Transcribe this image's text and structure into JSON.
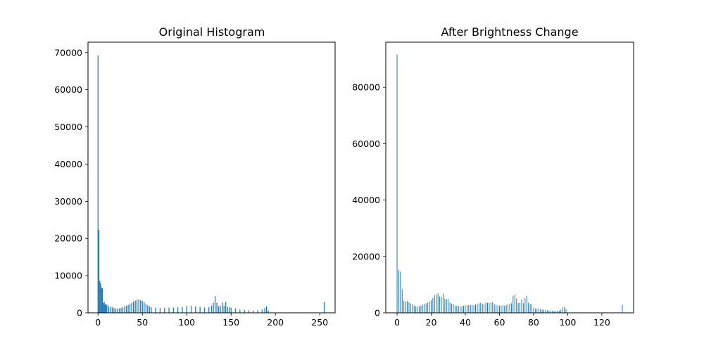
{
  "chart_data": [
    {
      "type": "bar",
      "title": "Original Histogram",
      "xlabel": "",
      "ylabel": "",
      "xlim": [
        -11.3,
        267.3
      ],
      "ylim": [
        0,
        72800
      ],
      "xticks": [
        0,
        50,
        100,
        150,
        200,
        250
      ],
      "yticks": [
        0,
        10000,
        20000,
        30000,
        40000,
        50000,
        60000,
        70000
      ],
      "xtick_labels": [
        "0",
        "50",
        "100",
        "150",
        "200",
        "250"
      ],
      "ytick_labels": [
        "0",
        "10000",
        "20000",
        "30000",
        "40000",
        "50000",
        "60000",
        "70000"
      ],
      "bar_width": 1,
      "color": "#1f77b4",
      "grid": false,
      "x": [
        0,
        1,
        2,
        3,
        4,
        5,
        6,
        7,
        8,
        9,
        10,
        12,
        14,
        16,
        18,
        20,
        22,
        24,
        26,
        28,
        30,
        32,
        34,
        36,
        38,
        40,
        42,
        44,
        46,
        48,
        50,
        52,
        54,
        56,
        58,
        60,
        65,
        70,
        75,
        80,
        85,
        90,
        95,
        100,
        105,
        110,
        115,
        120,
        125,
        128,
        130,
        132,
        134,
        136,
        138,
        140,
        142,
        144,
        146,
        148,
        150,
        155,
        160,
        165,
        170,
        175,
        180,
        185,
        188,
        190,
        192,
        255
      ],
      "values": [
        69200,
        22300,
        8600,
        7900,
        6800,
        6600,
        2600,
        3000,
        2400,
        2100,
        2200,
        1800,
        1600,
        1500,
        1300,
        1200,
        1100,
        1200,
        1300,
        1500,
        1700,
        1900,
        2100,
        2400,
        2700,
        3000,
        3300,
        3500,
        3500,
        3400,
        3200,
        2800,
        2400,
        2000,
        1700,
        1500,
        1400,
        1300,
        1300,
        1400,
        1400,
        1500,
        1600,
        1800,
        1900,
        1700,
        1600,
        1400,
        1500,
        1900,
        2700,
        4500,
        2700,
        1700,
        1800,
        2800,
        1900,
        2900,
        1600,
        1500,
        1400,
        1200,
        900,
        800,
        700,
        600,
        700,
        900,
        1300,
        1700,
        600,
        2900
      ]
    },
    {
      "type": "bar",
      "title": "After Brightness Change",
      "xlabel": "",
      "ylabel": "",
      "xlim": [
        -6.6,
        138.6
      ],
      "ylim": [
        0,
        96000
      ],
      "xticks": [
        0,
        20,
        40,
        60,
        80,
        100,
        120
      ],
      "yticks": [
        0,
        20000,
        40000,
        60000,
        80000
      ],
      "xtick_labels": [
        "0",
        "20",
        "40",
        "60",
        "80",
        "100",
        "120"
      ],
      "ytick_labels": [
        "0",
        "20000",
        "40000",
        "60000",
        "80000"
      ],
      "bar_width": 0.4,
      "color": "#1f77b4",
      "grid": false,
      "x": [
        0,
        1,
        2,
        3,
        4,
        5,
        6,
        7,
        8,
        9,
        10,
        11,
        12,
        13,
        14,
        15,
        16,
        17,
        18,
        19,
        20,
        21,
        22,
        23,
        24,
        25,
        26,
        27,
        28,
        29,
        30,
        31,
        32,
        33,
        34,
        35,
        36,
        37,
        38,
        39,
        40,
        41,
        42,
        43,
        44,
        45,
        46,
        47,
        48,
        49,
        50,
        51,
        52,
        53,
        54,
        55,
        56,
        57,
        58,
        59,
        60,
        61,
        62,
        63,
        64,
        65,
        66,
        67,
        68,
        69,
        70,
        71,
        72,
        73,
        74,
        75,
        76,
        77,
        78,
        79,
        80,
        81,
        82,
        83,
        84,
        85,
        86,
        87,
        88,
        89,
        90,
        91,
        92,
        93,
        94,
        95,
        96,
        97,
        98,
        99,
        132
      ],
      "values": [
        91700,
        15200,
        14600,
        8400,
        4300,
        4000,
        4100,
        3700,
        3300,
        3000,
        2600,
        2300,
        2200,
        2400,
        2600,
        2900,
        3100,
        3400,
        3600,
        4100,
        4500,
        5300,
        6300,
        6500,
        6900,
        5800,
        5600,
        6800,
        5000,
        4800,
        4800,
        3600,
        3300,
        3000,
        2600,
        2500,
        2400,
        2300,
        2200,
        2500,
        2600,
        2700,
        2700,
        2800,
        2700,
        2800,
        2900,
        3200,
        3400,
        3600,
        3200,
        3000,
        3700,
        3500,
        3500,
        3600,
        3800,
        3000,
        2800,
        2600,
        2500,
        2600,
        2700,
        2500,
        2700,
        3000,
        3200,
        3400,
        6000,
        6400,
        5100,
        3500,
        3600,
        4700,
        3400,
        5300,
        6000,
        3600,
        3200,
        2900,
        1800,
        1500,
        1400,
        1600,
        1300,
        1200,
        1100,
        1000,
        900,
        800,
        700,
        700,
        600,
        600,
        700,
        800,
        1100,
        1900,
        2100,
        1300,
        2900
      ]
    }
  ]
}
